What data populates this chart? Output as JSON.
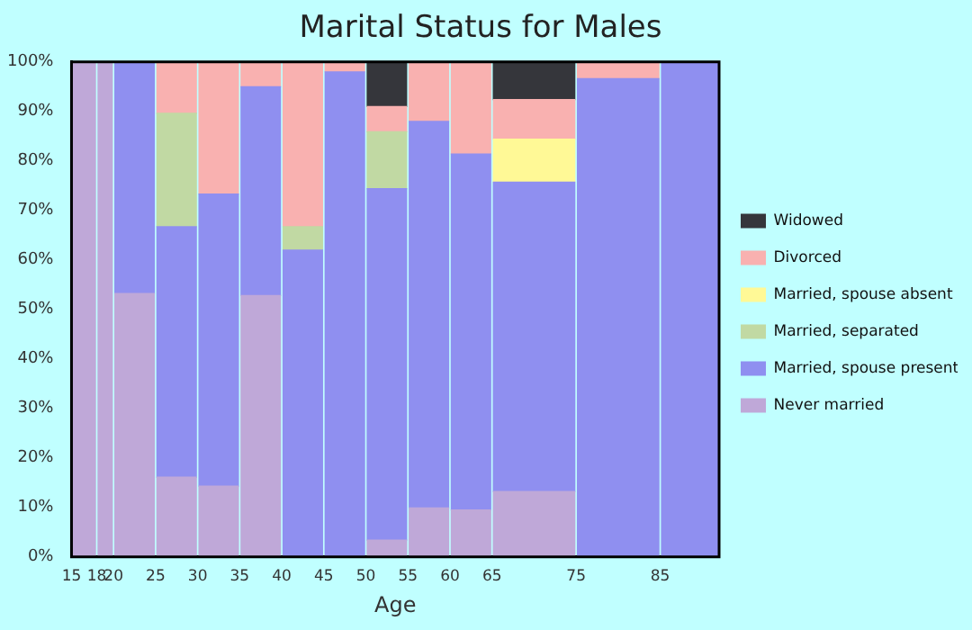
{
  "chart_data": {
    "type": "bar",
    "title": "Marital Status for Males",
    "xlabel": "Age",
    "stacked": true,
    "grid": false,
    "legend": "right",
    "x": [
      16.5,
      19,
      22.5,
      27.5,
      32.5,
      37.5,
      42.5,
      47.5,
      52.5,
      57.5,
      62.5,
      70,
      80,
      88.5
    ],
    "xlim": [
      15,
      92
    ],
    "xticks": [
      15,
      18,
      20,
      25,
      30,
      35,
      40,
      45,
      50,
      55,
      60,
      65,
      75,
      85
    ],
    "ylim": [
      0,
      100
    ],
    "yticks": [
      {
        "value": 0,
        "label": "0%"
      },
      {
        "value": 10,
        "label": "10%"
      },
      {
        "value": 20,
        "label": "20%"
      },
      {
        "value": 30,
        "label": "30%"
      },
      {
        "value": 40,
        "label": "40%"
      },
      {
        "value": 50,
        "label": "50%"
      },
      {
        "value": 60,
        "label": "60%"
      },
      {
        "value": 70,
        "label": "70%"
      },
      {
        "value": 80,
        "label": "80%"
      },
      {
        "value": 90,
        "label": "90%"
      },
      {
        "value": 100,
        "label": "100%"
      }
    ],
    "series": [
      {
        "name": "Never married",
        "color": "#bfa8d8",
        "values": [
          100,
          100,
          53.2,
          16.1,
          14.3,
          52.8,
          null,
          null,
          3.4,
          9.9,
          9.5,
          13.2,
          null,
          null
        ]
      },
      {
        "name": "Married, spouse present",
        "color": "#8f8ff0",
        "values": [
          null,
          null,
          46.8,
          50.6,
          59.0,
          42.2,
          62.0,
          98.0,
          71.0,
          78.1,
          71.9,
          62.5,
          96.6,
          100
        ]
      },
      {
        "name": "Married, separated",
        "color": "#c1d9a3",
        "values": [
          null,
          null,
          null,
          22.9,
          null,
          null,
          4.7,
          null,
          11.5,
          null,
          null,
          null,
          null,
          null
        ]
      },
      {
        "name": "Married, spouse absent",
        "color": "#fff996",
        "values": [
          null,
          null,
          null,
          null,
          null,
          null,
          null,
          null,
          null,
          null,
          null,
          8.7,
          null,
          null
        ]
      },
      {
        "name": "Divorced",
        "color": "#f9b1b0",
        "values": [
          null,
          null,
          null,
          10.4,
          26.7,
          5.0,
          33.3,
          2.0,
          5.1,
          12.0,
          18.6,
          8.0,
          3.4,
          null
        ]
      },
      {
        "name": "Widowed",
        "color": "#35363b",
        "values": [
          null,
          null,
          null,
          null,
          null,
          null,
          null,
          null,
          9.0,
          null,
          null,
          7.6,
          null,
          null
        ]
      }
    ]
  }
}
